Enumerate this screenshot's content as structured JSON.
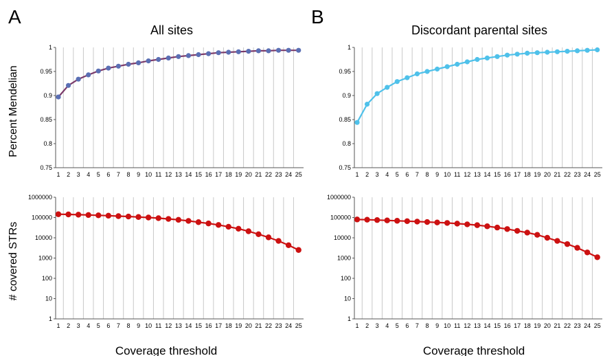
{
  "figure": {
    "panel_a_letter": "A",
    "panel_b_letter": "B",
    "panel_a_title": "All sites",
    "panel_b_title": "Discordant parental sites",
    "ylabel_top": "Percent Mendelian",
    "ylabel_bottom": "# covered STRs",
    "xlabel": "Coverage threshold"
  },
  "colors": {
    "mendel_all": "#5a6fb4",
    "mendel_discordant": "#4fc1ea",
    "covered": "#cc1111",
    "grid": "#c8c8c8",
    "axis": "#555555"
  },
  "chart_data": [
    {
      "id": "A-top",
      "type": "line",
      "title": "All sites",
      "ylabel": "Percent Mendelian",
      "xlabel": "",
      "x": [
        1,
        2,
        3,
        4,
        5,
        6,
        7,
        8,
        9,
        10,
        11,
        12,
        13,
        14,
        15,
        16,
        17,
        18,
        19,
        20,
        21,
        22,
        23,
        24,
        25
      ],
      "series": [
        {
          "values": [
            0.897,
            0.921,
            0.934,
            0.943,
            0.951,
            0.957,
            0.961,
            0.965,
            0.968,
            0.972,
            0.975,
            0.978,
            0.981,
            0.983,
            0.985,
            0.987,
            0.989,
            0.99,
            0.991,
            0.992,
            0.993,
            0.993,
            0.994,
            0.994,
            0.994
          ]
        }
      ],
      "ylim": [
        0.75,
        1
      ],
      "yticks": [
        "0.75",
        "0.8",
        "0.85",
        "0.9",
        "0.95",
        "1"
      ],
      "yscale": "linear",
      "grid": "vertical"
    },
    {
      "id": "B-top",
      "type": "line",
      "title": "Discordant parental sites",
      "ylabel": "",
      "xlabel": "",
      "x": [
        1,
        2,
        3,
        4,
        5,
        6,
        7,
        8,
        9,
        10,
        11,
        12,
        13,
        14,
        15,
        16,
        17,
        18,
        19,
        20,
        21,
        22,
        23,
        24,
        25
      ],
      "series": [
        {
          "values": [
            0.844,
            0.882,
            0.904,
            0.917,
            0.929,
            0.937,
            0.945,
            0.95,
            0.955,
            0.96,
            0.965,
            0.97,
            0.975,
            0.978,
            0.981,
            0.984,
            0.986,
            0.988,
            0.989,
            0.99,
            0.991,
            0.992,
            0.993,
            0.994,
            0.995
          ]
        }
      ],
      "ylim": [
        0.75,
        1
      ],
      "yticks": [
        "0.75",
        "0.8",
        "0.85",
        "0.9",
        "0.95",
        "1"
      ],
      "yscale": "linear",
      "grid": "vertical"
    },
    {
      "id": "A-bottom",
      "type": "line",
      "ylabel": "# covered STRs",
      "xlabel": "Coverage threshold",
      "x": [
        1,
        2,
        3,
        4,
        5,
        6,
        7,
        8,
        9,
        10,
        11,
        12,
        13,
        14,
        15,
        16,
        17,
        18,
        19,
        20,
        21,
        22,
        23,
        24,
        25
      ],
      "series": [
        {
          "values": [
            145000,
            142000,
            138000,
            133000,
            128000,
            123000,
            117000,
            112000,
            106000,
            100000,
            93000,
            85000,
            77000,
            68000,
            59000,
            51000,
            43000,
            35000,
            28000,
            21000,
            15000,
            10500,
            7000,
            4300,
            2500
          ]
        }
      ],
      "ylim": [
        1,
        1000000
      ],
      "yticks": [
        "1",
        "10",
        "100",
        "1000",
        "10000",
        "100000",
        "1000000"
      ],
      "yscale": "log",
      "grid": "vertical"
    },
    {
      "id": "B-bottom",
      "type": "line",
      "ylabel": "",
      "xlabel": "Coverage threshold",
      "x": [
        1,
        2,
        3,
        4,
        5,
        6,
        7,
        8,
        9,
        10,
        11,
        12,
        13,
        14,
        15,
        16,
        17,
        18,
        19,
        20,
        21,
        22,
        23,
        24,
        25
      ],
      "series": [
        {
          "values": [
            80000,
            78000,
            75000,
            72000,
            69000,
            66000,
            63000,
            60000,
            57000,
            54000,
            50000,
            46000,
            42000,
            37000,
            32000,
            27000,
            22000,
            18000,
            14000,
            10000,
            7000,
            4900,
            3200,
            1900,
            1100
          ]
        }
      ],
      "ylim": [
        1,
        1000000
      ],
      "yticks": [
        "1",
        "10",
        "100",
        "1000",
        "10000",
        "100000",
        "1000000"
      ],
      "yscale": "log",
      "grid": "vertical"
    }
  ]
}
